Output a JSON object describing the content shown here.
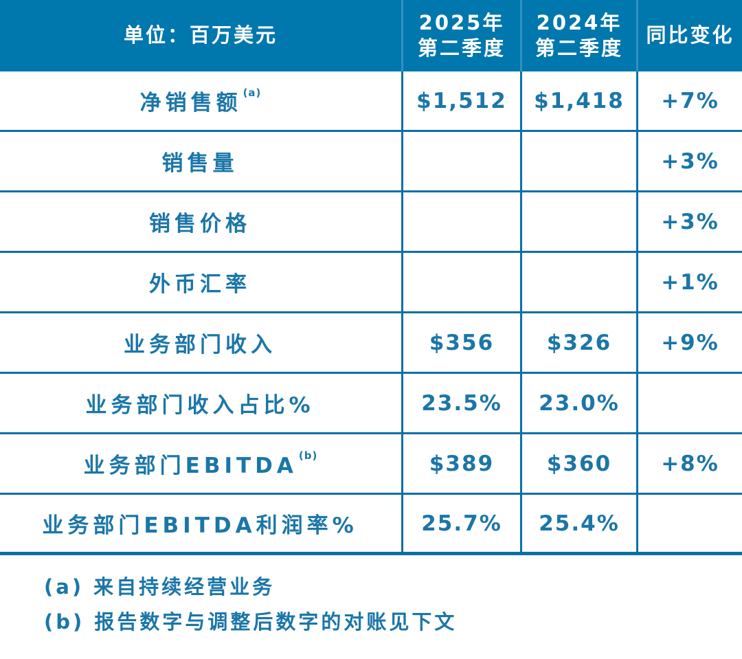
{
  "table": {
    "unit_header": "单位：百万美元",
    "col_2025": {
      "line1": "2025年",
      "line2": "第二季度"
    },
    "col_2024": {
      "line1": "2024年",
      "line2": "第二季度"
    },
    "col_change": "同比变化",
    "rows": [
      {
        "label": "净销售额",
        "sup": "(a)",
        "v2025": "$1,512",
        "v2024": "$1,418",
        "change": "+7%"
      },
      {
        "label": "销售量",
        "sup": "",
        "v2025": "",
        "v2024": "",
        "change": "+3%"
      },
      {
        "label": "销售价格",
        "sup": "",
        "v2025": "",
        "v2024": "",
        "change": "+3%"
      },
      {
        "label": "外币汇率",
        "sup": "",
        "v2025": "",
        "v2024": "",
        "change": "+1%"
      },
      {
        "label": "业务部门收入",
        "sup": "",
        "v2025": "$356",
        "v2024": "$326",
        "change": "+9%"
      },
      {
        "label": "业务部门收入占比%",
        "sup": "",
        "v2025": "23.5%",
        "v2024": "23.0%",
        "change": ""
      },
      {
        "label": "业务部门EBITDA",
        "sup": "(b)",
        "v2025": "$389",
        "v2024": "$360",
        "change": "+8%"
      },
      {
        "label": "业务部门EBITDA利润率%",
        "sup": "",
        "v2025": "25.7%",
        "v2024": "25.4%",
        "change": ""
      }
    ]
  },
  "footnotes": [
    "(a) 来自持续经营业务",
    "(b) 报告数字与调整后数字的对账见下文"
  ],
  "colors": {
    "header_background": "#0077AD",
    "grid_line": "#0A70A5",
    "text": "#1B76A8"
  }
}
